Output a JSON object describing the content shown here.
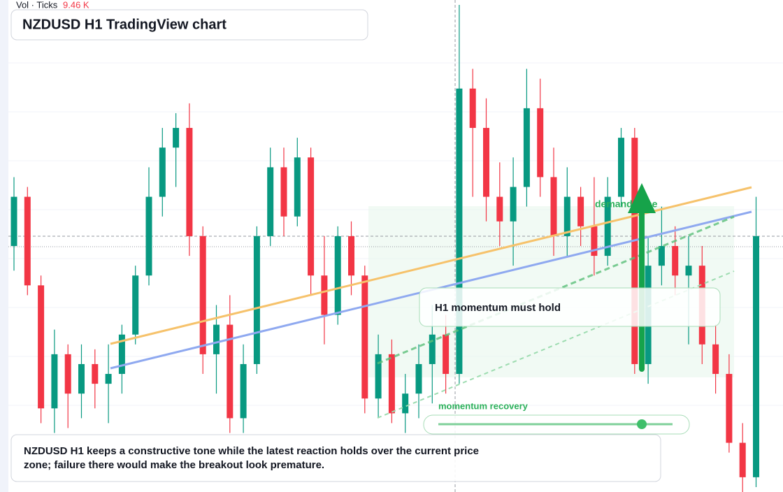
{
  "chart_data": {
    "type": "candlestick",
    "title": "NZDUSD H1 TradingView chart",
    "indicator_label": "Vol · Ticks",
    "indicator_value": "9.46 K",
    "zone_label": "demand zone",
    "callout": "H1 momentum must hold",
    "slider_label": "momentum recovery",
    "caption": "NZDUSD H1 keeps a constructive tone while the latest reaction holds over the current price zone; failure there would make the breakout look premature.",
    "up_color": "#089981",
    "down_color": "#f23645",
    "ylim": [
      0,
      100
    ],
    "open": [
      50,
      60,
      42,
      17,
      28,
      20,
      26,
      22,
      24,
      32,
      44,
      60,
      70,
      74,
      52,
      28,
      34,
      15,
      26,
      52,
      66,
      56,
      68,
      44,
      36,
      52,
      44,
      19,
      28,
      16,
      20,
      26,
      32,
      24,
      82,
      74,
      60,
      55,
      62,
      78,
      64,
      52,
      60,
      54,
      48,
      60,
      72,
      26,
      46,
      50,
      44,
      46,
      30,
      24,
      10,
      3
    ],
    "high": [
      64,
      62,
      44,
      33,
      30,
      30,
      29,
      30,
      34,
      46,
      66,
      74,
      77,
      79,
      54,
      38,
      40,
      30,
      54,
      70,
      70,
      72,
      70,
      52,
      54,
      55,
      46,
      32,
      31,
      24,
      30,
      38,
      36,
      99,
      86,
      80,
      67,
      68,
      86,
      84,
      70,
      66,
      62,
      64,
      64,
      74,
      74,
      52,
      58,
      54,
      52,
      50,
      34,
      28,
      14,
      60
    ],
    "low": [
      45,
      40,
      14,
      12,
      13,
      15,
      17,
      14,
      20,
      30,
      42,
      56,
      62,
      48,
      24,
      20,
      12,
      12,
      24,
      50,
      52,
      54,
      40,
      30,
      34,
      40,
      16,
      15,
      14,
      12,
      15,
      18,
      20,
      22,
      60,
      55,
      50,
      46,
      58,
      60,
      48,
      48,
      50,
      44,
      46,
      58,
      24,
      22,
      42,
      40,
      30,
      26,
      20,
      8,
      0,
      1
    ],
    "close": [
      60,
      42,
      17,
      28,
      20,
      26,
      22,
      24,
      32,
      44,
      60,
      70,
      74,
      52,
      28,
      34,
      15,
      26,
      52,
      66,
      56,
      68,
      44,
      36,
      52,
      44,
      19,
      28,
      16,
      20,
      26,
      32,
      24,
      82,
      74,
      60,
      55,
      62,
      78,
      64,
      52,
      60,
      54,
      48,
      60,
      72,
      26,
      46,
      50,
      44,
      46,
      30,
      24,
      10,
      3,
      52
    ]
  }
}
